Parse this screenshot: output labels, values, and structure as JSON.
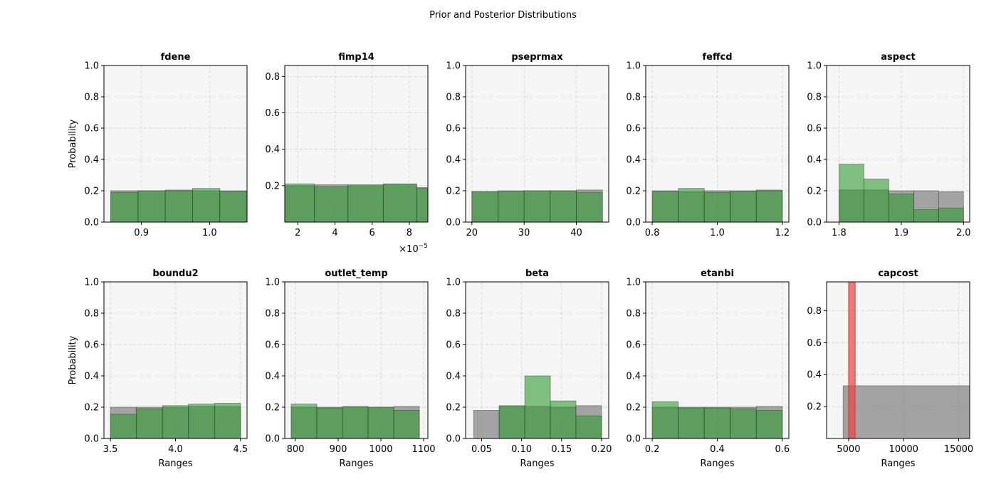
{
  "figure": {
    "title": "Prior and Posterior Distributions",
    "colors": {
      "prior": "#808080",
      "posterior": "#2e9a2e",
      "posterior_single": "#f04040"
    }
  },
  "chart_data": [
    {
      "type": "bar",
      "title": "fdene",
      "xlabel": "",
      "ylabel": "Probability",
      "xlim": [
        0.845,
        1.055
      ],
      "ylim": [
        0,
        1.0
      ],
      "xticks": [
        0.9,
        1.0
      ],
      "xtick_labels": [
        "0.9",
        "1.0"
      ],
      "yticks": [
        0,
        0.2,
        0.4,
        0.6,
        0.8,
        1.0
      ],
      "ytick_labels": [
        "0.0",
        "0.2",
        "0.4",
        "0.6",
        "0.8",
        "1.0"
      ],
      "bin_edges": [
        0.855,
        0.895,
        0.935,
        0.975,
        1.015,
        1.055
      ],
      "series": [
        {
          "values": [
            0.2,
            0.2,
            0.205,
            0.2,
            0.2
          ],
          "color": "prior"
        },
        {
          "values": [
            0.19,
            0.2,
            0.2,
            0.215,
            0.195
          ],
          "color": "posterior"
        }
      ],
      "grid": true
    },
    {
      "type": "bar",
      "title": "fimp14",
      "xlabel": "",
      "ylabel": "",
      "xlim": [
        1.3,
        9.0
      ],
      "ylim": [
        0,
        0.86
      ],
      "xticks": [
        2,
        4,
        6,
        8
      ],
      "xtick_labels": [
        "2",
        "4",
        "6",
        "8"
      ],
      "yticks": [
        0.2,
        0.4,
        0.6,
        0.8
      ],
      "ytick_labels": [
        "0.2",
        "0.4",
        "0.6",
        "0.8"
      ],
      "offset_label": "×10",
      "offset_exponent": "−5",
      "bin_edges": [
        1.0,
        2.9,
        4.7,
        6.6,
        8.4,
        10.2
      ],
      "series": [
        {
          "values": [
            0.2,
            0.205,
            0.2,
            0.205,
            0.19
          ],
          "color": "prior"
        },
        {
          "values": [
            0.21,
            0.195,
            0.205,
            0.21,
            0.185
          ],
          "color": "posterior"
        }
      ],
      "grid": true
    },
    {
      "type": "bar",
      "title": "pseprmax",
      "xlabel": "",
      "ylabel": "",
      "xlim": [
        18.8,
        46.2
      ],
      "ylim": [
        0,
        1.0
      ],
      "xticks": [
        20,
        30,
        40
      ],
      "xtick_labels": [
        "20",
        "30",
        "40"
      ],
      "yticks": [
        0,
        0.2,
        0.4,
        0.6,
        0.8,
        1.0
      ],
      "ytick_labels": [
        "0.0",
        "0.2",
        "0.4",
        "0.6",
        "0.8",
        "1.0"
      ],
      "bin_edges": [
        20,
        25,
        30,
        35,
        40,
        45
      ],
      "series": [
        {
          "values": [
            0.195,
            0.2,
            0.2,
            0.2,
            0.205
          ],
          "color": "prior"
        },
        {
          "values": [
            0.195,
            0.195,
            0.2,
            0.2,
            0.19
          ],
          "color": "posterior"
        }
      ],
      "grid": true
    },
    {
      "type": "bar",
      "title": "feffcd",
      "xlabel": "",
      "ylabel": "",
      "xlim": [
        0.78,
        1.22
      ],
      "ylim": [
        0,
        1.0
      ],
      "xticks": [
        0.8,
        1.0,
        1.2
      ],
      "xtick_labels": [
        "0.8",
        "1.0",
        "1.2"
      ],
      "yticks": [
        0,
        0.2,
        0.4,
        0.6,
        0.8,
        1.0
      ],
      "ytick_labels": [
        "0.0",
        "0.2",
        "0.4",
        "0.6",
        "0.8",
        "1.0"
      ],
      "bin_edges": [
        0.8,
        0.88,
        0.96,
        1.04,
        1.12,
        1.2
      ],
      "series": [
        {
          "values": [
            0.2,
            0.195,
            0.2,
            0.2,
            0.205
          ],
          "color": "prior"
        },
        {
          "values": [
            0.195,
            0.215,
            0.19,
            0.195,
            0.2
          ],
          "color": "posterior"
        }
      ],
      "grid": true
    },
    {
      "type": "bar",
      "title": "aspect",
      "xlabel": "",
      "ylabel": "",
      "xlim": [
        1.78,
        2.01
      ],
      "ylim": [
        0,
        1.0
      ],
      "xticks": [
        1.8,
        1.9,
        2.0
      ],
      "xtick_labels": [
        "1.8",
        "1.9",
        "2.0"
      ],
      "yticks": [
        0,
        0.2,
        0.4,
        0.6,
        0.8,
        1.0
      ],
      "ytick_labels": [
        "0.0",
        "0.2",
        "0.4",
        "0.6",
        "0.8",
        "1.0"
      ],
      "bin_edges": [
        1.8,
        1.84,
        1.88,
        1.92,
        1.96,
        2.0
      ],
      "series": [
        {
          "values": [
            0.205,
            0.205,
            0.2,
            0.2,
            0.195
          ],
          "color": "prior"
        },
        {
          "values": [
            0.37,
            0.275,
            0.18,
            0.08,
            0.09
          ],
          "color": "posterior"
        }
      ],
      "grid": true
    },
    {
      "type": "bar",
      "title": "boundu2",
      "xlabel": "Ranges",
      "ylabel": "Probability",
      "xlim": [
        3.45,
        4.55
      ],
      "ylim": [
        0,
        1.0
      ],
      "xticks": [
        3.5,
        4.0,
        4.5
      ],
      "xtick_labels": [
        "3.5",
        "4.0",
        "4.5"
      ],
      "yticks": [
        0,
        0.2,
        0.4,
        0.6,
        0.8,
        1.0
      ],
      "ytick_labels": [
        "0.0",
        "0.2",
        "0.4",
        "0.6",
        "0.8",
        "1.0"
      ],
      "bin_edges": [
        3.5,
        3.7,
        3.9,
        4.1,
        4.3,
        4.5
      ],
      "series": [
        {
          "values": [
            0.2,
            0.2,
            0.2,
            0.205,
            0.205
          ],
          "color": "prior"
        },
        {
          "values": [
            0.155,
            0.19,
            0.21,
            0.22,
            0.225
          ],
          "color": "posterior"
        }
      ],
      "grid": true
    },
    {
      "type": "bar",
      "title": "outlet_temp",
      "xlabel": "Ranges",
      "ylabel": "",
      "xlim": [
        775,
        1110
      ],
      "ylim": [
        0,
        1.0
      ],
      "xticks": [
        800,
        900,
        1000,
        1100
      ],
      "xtick_labels": [
        "800",
        "900",
        "1000",
        "1100"
      ],
      "yticks": [
        0,
        0.2,
        0.4,
        0.6,
        0.8,
        1.0
      ],
      "ytick_labels": [
        "0.0",
        "0.2",
        "0.4",
        "0.6",
        "0.8",
        "1.0"
      ],
      "bin_edges": [
        790,
        850,
        910,
        970,
        1030,
        1090
      ],
      "series": [
        {
          "values": [
            0.2,
            0.2,
            0.2,
            0.2,
            0.205
          ],
          "color": "prior"
        },
        {
          "values": [
            0.22,
            0.195,
            0.205,
            0.2,
            0.18
          ],
          "color": "posterior"
        }
      ],
      "grid": true
    },
    {
      "type": "bar",
      "title": "beta",
      "xlabel": "Ranges",
      "ylabel": "",
      "xlim": [
        0.03,
        0.209
      ],
      "ylim": [
        0,
        1.0
      ],
      "xticks": [
        0.05,
        0.1,
        0.15,
        0.2
      ],
      "xtick_labels": [
        "0.05",
        "0.10",
        "0.15",
        "0.20"
      ],
      "yticks": [
        0,
        0.2,
        0.4,
        0.6,
        0.8,
        1.0
      ],
      "ytick_labels": [
        "0.0",
        "0.2",
        "0.4",
        "0.6",
        "0.8",
        "1.0"
      ],
      "bin_edges": [
        0.04,
        0.072,
        0.104,
        0.136,
        0.168,
        0.2
      ],
      "series": [
        {
          "values": [
            0.18,
            0.205,
            0.205,
            0.2,
            0.21
          ],
          "color": "prior"
        },
        {
          "values": [
            0.0,
            0.21,
            0.4,
            0.24,
            0.145
          ],
          "color": "posterior"
        }
      ],
      "grid": true
    },
    {
      "type": "bar",
      "title": "etanbi",
      "xlabel": "Ranges",
      "ylabel": "",
      "xlim": [
        0.18,
        0.62
      ],
      "ylim": [
        0,
        1.0
      ],
      "xticks": [
        0.2,
        0.4,
        0.6
      ],
      "xtick_labels": [
        "0.2",
        "0.4",
        "0.6"
      ],
      "yticks": [
        0,
        0.2,
        0.4,
        0.6,
        0.8,
        1.0
      ],
      "ytick_labels": [
        "0.0",
        "0.2",
        "0.4",
        "0.6",
        "0.8",
        "1.0"
      ],
      "bin_edges": [
        0.2,
        0.28,
        0.36,
        0.44,
        0.52,
        0.6
      ],
      "series": [
        {
          "values": [
            0.2,
            0.2,
            0.2,
            0.2,
            0.205
          ],
          "color": "prior"
        },
        {
          "values": [
            0.235,
            0.195,
            0.195,
            0.19,
            0.18
          ],
          "color": "posterior"
        }
      ],
      "grid": true
    },
    {
      "type": "bar",
      "title": "capcost",
      "xlabel": "Ranges",
      "ylabel": "",
      "xlim": [
        3000,
        16000
      ],
      "ylim": [
        0,
        0.98
      ],
      "xticks": [
        5000,
        10000,
        15000
      ],
      "xtick_labels": [
        "5000",
        "10000",
        "15000"
      ],
      "yticks": [
        0.2,
        0.4,
        0.6,
        0.8
      ],
      "ytick_labels": [
        "0.2",
        "0.4",
        "0.6",
        "0.8"
      ],
      "bin_edges": [
        4500,
        16000
      ],
      "series": [
        {
          "values": [
            0.33
          ],
          "color": "prior"
        }
      ],
      "posterior_bar": {
        "x0": 5000,
        "x1": 5600,
        "value": 1.0,
        "color": "posterior_single"
      },
      "grid": true
    }
  ]
}
